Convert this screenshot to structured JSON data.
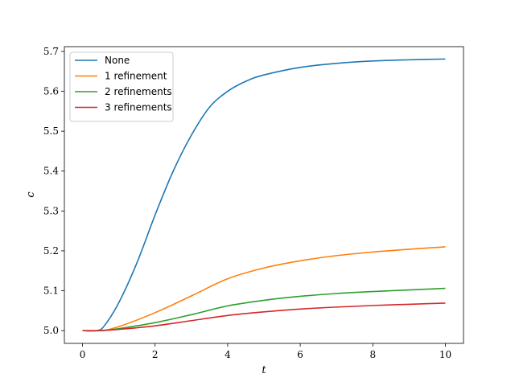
{
  "chart_data": {
    "type": "line",
    "xlabel": "t",
    "ylabel": "c",
    "xlim": [
      -0.5,
      10.5
    ],
    "ylim": [
      4.968,
      5.712
    ],
    "xticks": [
      0,
      2,
      4,
      6,
      8,
      10
    ],
    "yticks": [
      5.0,
      5.1,
      5.2,
      5.3,
      5.4,
      5.5,
      5.6,
      5.7
    ],
    "xtick_labels": [
      "0",
      "2",
      "4",
      "6",
      "8",
      "10"
    ],
    "ytick_labels": [
      "5.0",
      "5.1",
      "5.2",
      "5.3",
      "5.4",
      "5.5",
      "5.6",
      "5.7"
    ],
    "grid": false,
    "legend_position": "top-left",
    "series": [
      {
        "name": "None",
        "color": "#1f77b4",
        "x": [
          0,
          0.4,
          0.6,
          1.0,
          1.5,
          2.0,
          2.5,
          3.0,
          3.5,
          4.0,
          4.5,
          5.0,
          6.0,
          7.0,
          8.0,
          9.0,
          10.0
        ],
        "y": [
          5.0,
          5.0,
          5.012,
          5.07,
          5.17,
          5.29,
          5.4,
          5.49,
          5.56,
          5.6,
          5.625,
          5.641,
          5.66,
          5.67,
          5.676,
          5.679,
          5.681
        ]
      },
      {
        "name": "1 refinement",
        "color": "#ff7f0e",
        "x": [
          0,
          0.5,
          1.0,
          2.0,
          3.0,
          4.0,
          5.0,
          6.0,
          7.0,
          8.0,
          9.0,
          10.0
        ],
        "y": [
          5.0,
          5.0,
          5.01,
          5.045,
          5.087,
          5.13,
          5.157,
          5.175,
          5.188,
          5.197,
          5.204,
          5.21
        ]
      },
      {
        "name": "2 refinements",
        "color": "#2ca02c",
        "x": [
          0,
          0.5,
          1.0,
          2.0,
          3.0,
          4.0,
          5.0,
          6.0,
          7.0,
          8.0,
          9.0,
          10.0
        ],
        "y": [
          5.0,
          5.0,
          5.005,
          5.02,
          5.04,
          5.062,
          5.076,
          5.086,
          5.093,
          5.098,
          5.102,
          5.106
        ]
      },
      {
        "name": "3 refinements",
        "color": "#d62728",
        "x": [
          0,
          0.5,
          1.0,
          2.0,
          3.0,
          4.0,
          5.0,
          6.0,
          7.0,
          8.0,
          9.0,
          10.0
        ],
        "y": [
          5.0,
          5.0,
          5.003,
          5.012,
          5.025,
          5.038,
          5.047,
          5.054,
          5.059,
          5.063,
          5.066,
          5.069
        ]
      }
    ]
  }
}
